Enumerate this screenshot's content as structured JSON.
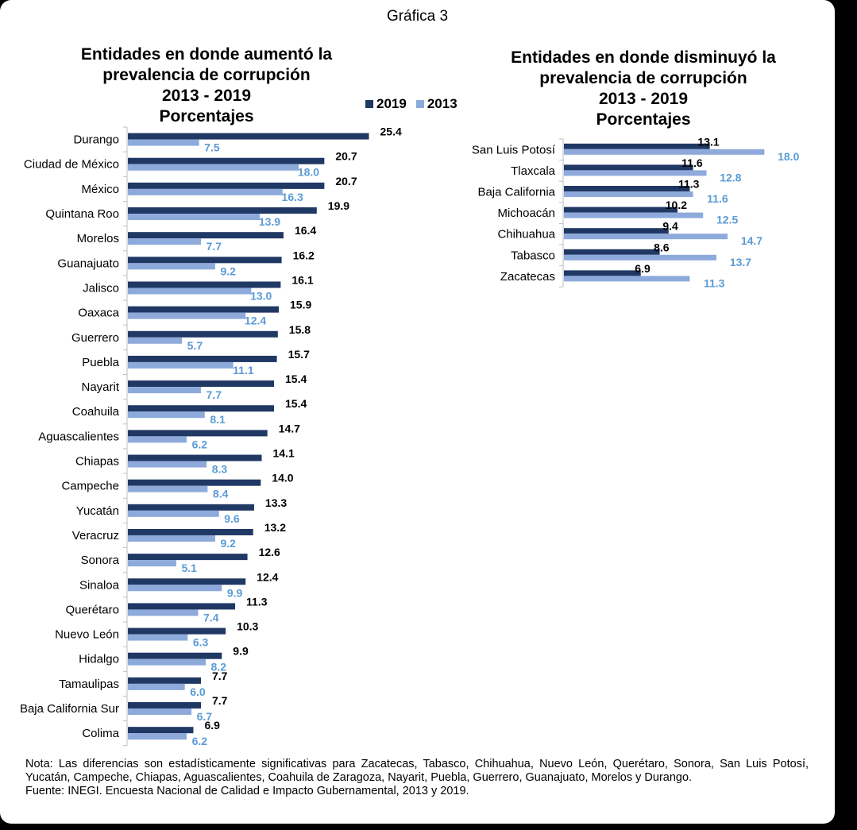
{
  "figure": {
    "caption": "Gráfica 3",
    "note": "Nota: Las diferencias son estadísticamente significativas para Zacatecas, Tabasco, Chihuahua, Nuevo León, Querétaro, Sonora, San Luis Potosí, Yucatán, Campeche, Chiapas, Aguascalientes, Coahuila de Zaragoza, Nayarit, Puebla, Guerrero, Guanajuato, Morelos y Durango.",
    "source": "Fuente: INEGI. Encuesta Nacional de Calidad e Impacto Gubernamental,  2013 y 2019."
  },
  "colors": {
    "series_2019": "#203864",
    "series_2013": "#8eaadb",
    "label_2013": "#5b9bd5"
  },
  "chart_data": [
    {
      "type": "bar",
      "orientation": "horizontal",
      "title_lines": [
        "Entidades en donde aumentó la",
        "prevalencia de corrupción",
        "2013 - 2019",
        "Porcentajes"
      ],
      "legend": [
        "2019",
        "2013"
      ],
      "legend_position": "top-right",
      "categories": [
        "Durango",
        "Ciudad de México",
        "México",
        "Quintana Roo",
        "Morelos",
        "Guanajuato",
        "Jalisco",
        "Oaxaca",
        "Guerrero",
        "Puebla",
        "Nayarit",
        "Coahuila",
        "Aguascalientes",
        "Chiapas",
        "Campeche",
        "Yucatán",
        "Veracruz",
        "Sonora",
        "Sinaloa",
        "Querétaro",
        "Nuevo León",
        "Hidalgo",
        "Tamaulipas",
        "Baja California Sur",
        "Colima"
      ],
      "series": [
        {
          "name": "2019",
          "values": [
            25.4,
            20.7,
            20.7,
            19.9,
            16.4,
            16.2,
            16.1,
            15.9,
            15.8,
            15.7,
            15.4,
            15.4,
            14.7,
            14.1,
            14.0,
            13.3,
            13.2,
            12.6,
            12.4,
            11.3,
            10.3,
            9.9,
            7.7,
            7.7,
            6.9
          ]
        },
        {
          "name": "2013",
          "values": [
            7.5,
            18.0,
            16.3,
            13.9,
            7.7,
            9.2,
            13.0,
            12.4,
            5.7,
            11.1,
            7.7,
            8.1,
            6.2,
            8.3,
            8.4,
            9.6,
            9.2,
            5.1,
            9.9,
            7.4,
            6.3,
            8.2,
            6.0,
            6.7,
            6.2
          ]
        }
      ],
      "labels_2019": [
        "25.4",
        "20.7",
        "20.7",
        "19.9",
        "16.4",
        "16.2",
        "16.1",
        "15.9",
        "15.8",
        "15.7",
        "15.4",
        "15.4",
        "14.7",
        "14.1",
        "14.0",
        "13.3",
        "13.2",
        "12.6",
        "12.4",
        "11.3",
        "10.3",
        "9.9",
        "7.7",
        "7.7",
        "6.9"
      ],
      "labels_2013": [
        "7.5",
        "18.0",
        "16.3",
        "13.9",
        "7.7",
        "9.2",
        "13.0",
        "12.4",
        "5.7",
        "11.1",
        "7.7",
        "8.1",
        "6.2",
        "8.3",
        "8.4",
        "9.6",
        "9.2",
        "5.1",
        "9.9",
        "7.4",
        "6.3",
        "8.2",
        "6.0",
        "6.7",
        "6.2"
      ],
      "xlim": [
        0,
        30
      ],
      "grid": false
    },
    {
      "type": "bar",
      "orientation": "horizontal",
      "title_lines": [
        "Entidades en donde disminuyó la",
        "prevalencia de corrupción",
        "2013 - 2019",
        "Porcentajes"
      ],
      "categories": [
        "San Luis Potosí",
        "Tlaxcala",
        "Baja California",
        "Michoacán",
        "Chihuahua",
        "Tabasco",
        "Zacatecas"
      ],
      "series": [
        {
          "name": "2019",
          "values": [
            13.1,
            11.6,
            11.3,
            10.2,
            9.4,
            8.6,
            6.9
          ]
        },
        {
          "name": "2013",
          "values": [
            18.0,
            12.8,
            11.6,
            12.5,
            14.7,
            13.7,
            11.3
          ]
        }
      ],
      "labels_2019": [
        "13.1",
        "11.6",
        "11.3",
        "10.2",
        "9.4",
        "8.6",
        "6.9"
      ],
      "labels_2013": [
        "18.0",
        "12.8",
        "11.6",
        "12.5",
        "14.7",
        "13.7",
        "11.3"
      ],
      "xlim": [
        0,
        20
      ],
      "grid": false
    }
  ]
}
